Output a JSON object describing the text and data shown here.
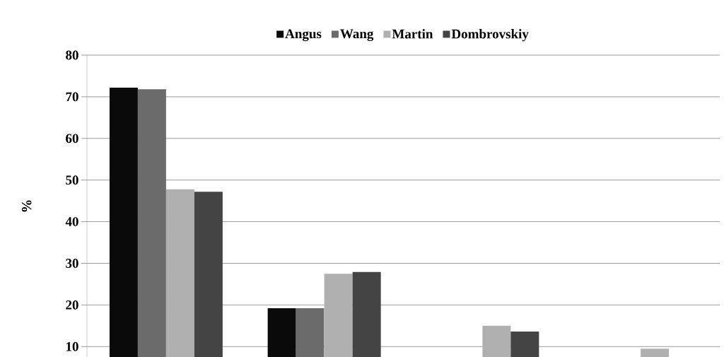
{
  "chart_data": {
    "type": "bar",
    "ylabel": "%",
    "categories": [
      null,
      null,
      null,
      null
    ],
    "series": [
      {
        "name": "Angus",
        "color": "#0a0a0a",
        "values": [
          72.2,
          19.2,
          null,
          null
        ]
      },
      {
        "name": "Wang",
        "color": "#6b6b6b",
        "values": [
          71.8,
          19.2,
          null,
          null
        ]
      },
      {
        "name": "Martin",
        "color": "#b0b0b0",
        "values": [
          47.8,
          27.5,
          15.0,
          9.5
        ]
      },
      {
        "name": "Dombrovskiy",
        "color": "#444444",
        "values": [
          47.2,
          27.9,
          13.6,
          null
        ]
      }
    ],
    "ylim": [
      7.5,
      80
    ],
    "yticks": [
      10,
      20,
      30,
      40,
      50,
      60,
      70,
      80
    ],
    "grid": "y",
    "legend": "top"
  }
}
